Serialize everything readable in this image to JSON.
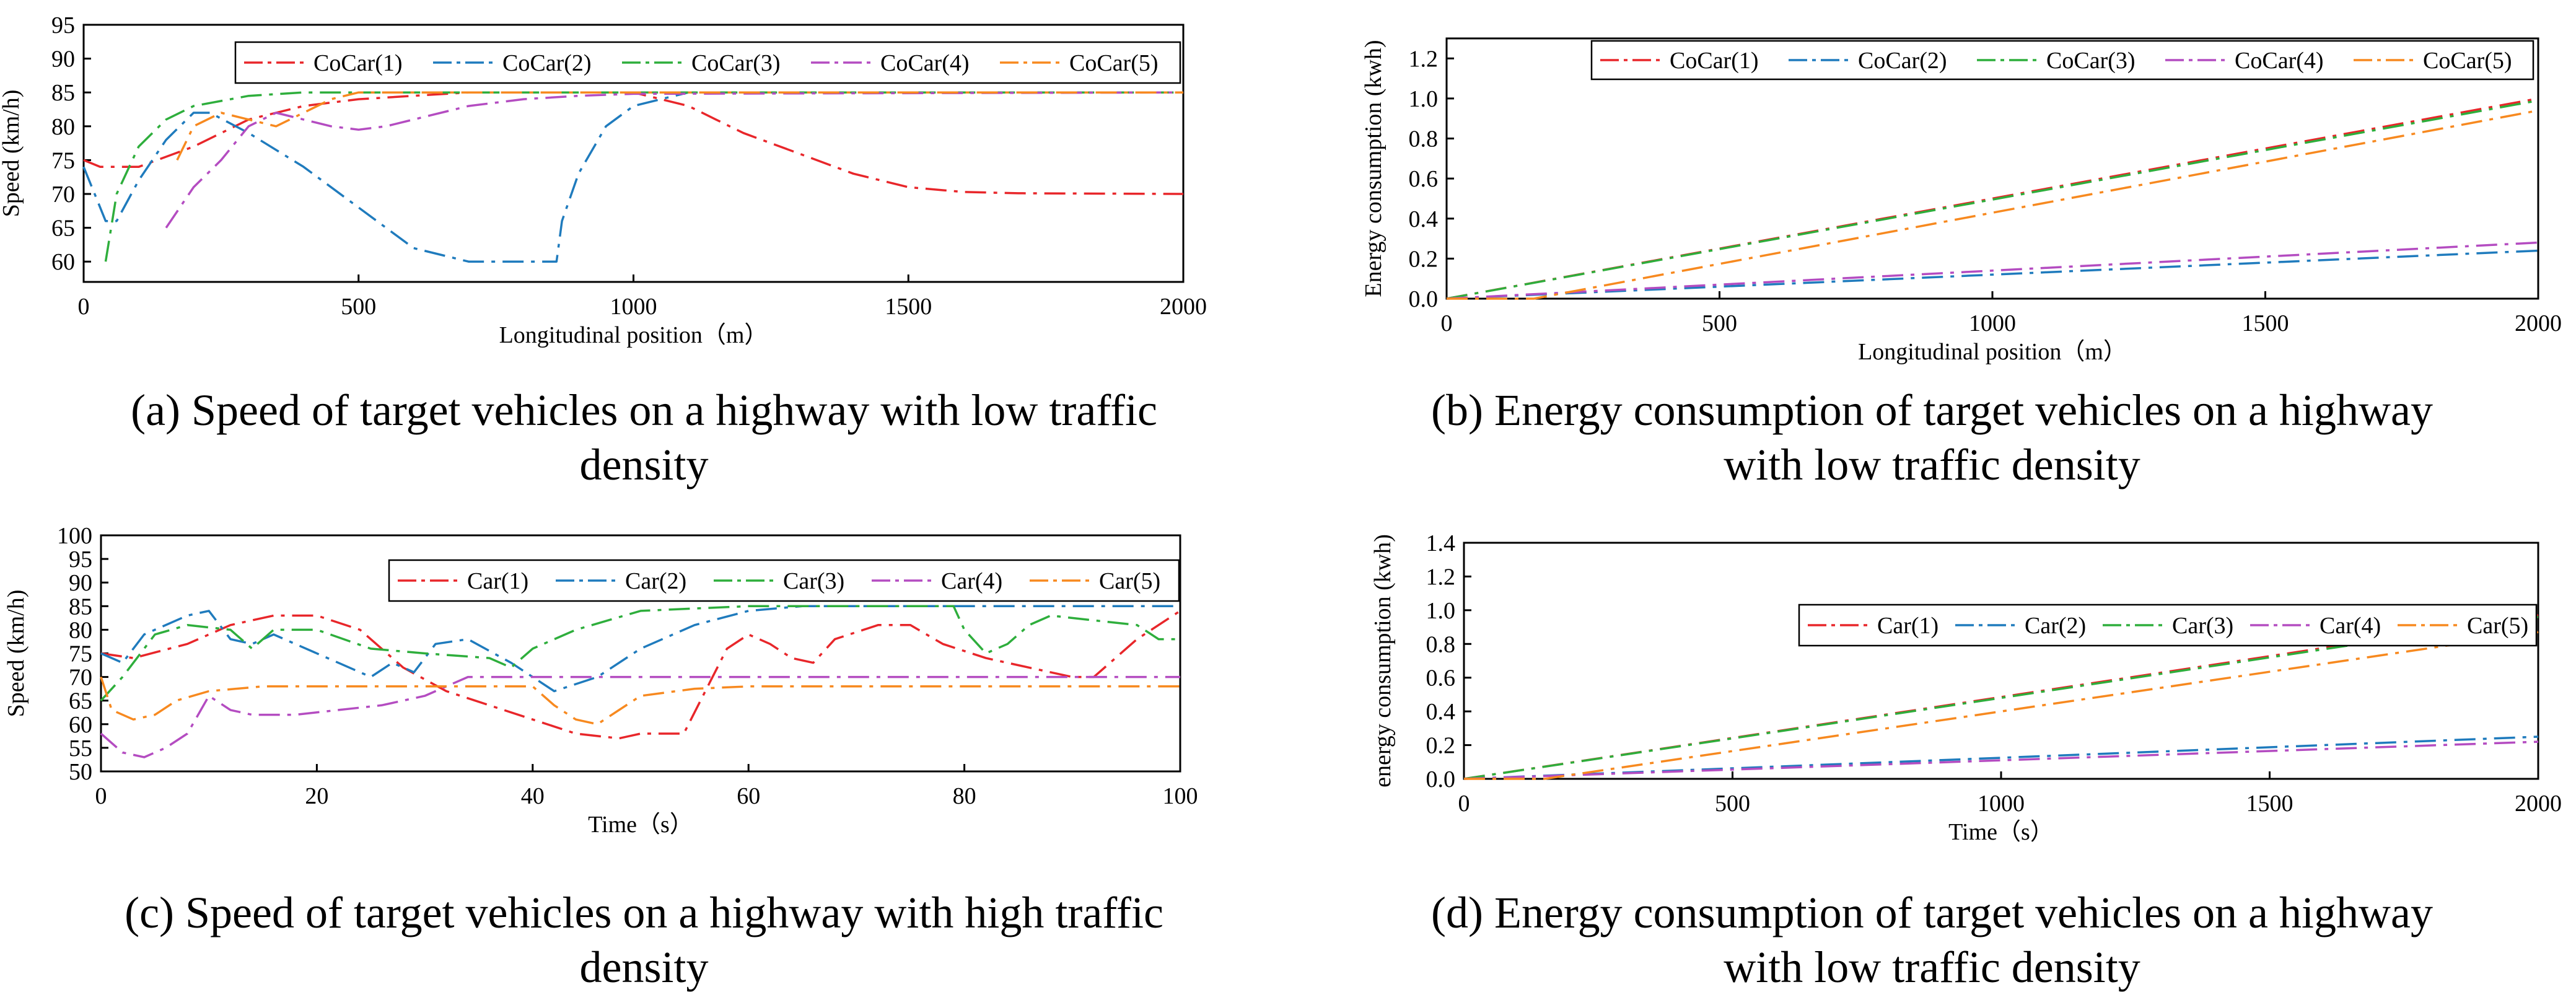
{
  "colors": {
    "series": [
      "#e8262a",
      "#1f7bbd",
      "#2eae3c",
      "#b44cc1",
      "#f7891f"
    ],
    "axis": "#000000",
    "background": "#ffffff"
  },
  "chart_data": [
    {
      "id": "a",
      "type": "line",
      "caption": "(a) Speed of target vehicles on a highway with low traffic density",
      "caption_lines": [
        "(a) Speed of target vehicles on a highway with low traffic",
        "density"
      ],
      "xlabel": "Longitudinal position（m）",
      "ylabel": "Speed (km/h)",
      "xlim": [
        0,
        2000
      ],
      "ylim": [
        57,
        95
      ],
      "xticks": [
        0,
        500,
        1000,
        1500,
        2000
      ],
      "yticks": [
        60,
        65,
        70,
        75,
        80,
        85,
        90,
        95
      ],
      "tick_decimals": 0,
      "grid": false,
      "legend_position": "top-right",
      "series": [
        {
          "name": "CoCar(1)",
          "points": [
            [
              0,
              75
            ],
            [
              30,
              74
            ],
            [
              100,
              74
            ],
            [
              200,
              77
            ],
            [
              300,
              81
            ],
            [
              400,
              83
            ],
            [
              500,
              84
            ],
            [
              700,
              85
            ],
            [
              1000,
              85
            ],
            [
              1050,
              84
            ],
            [
              1100,
              83
            ],
            [
              1150,
              81
            ],
            [
              1200,
              79
            ],
            [
              1300,
              76
            ],
            [
              1400,
              73
            ],
            [
              1500,
              71
            ],
            [
              1600,
              70.3
            ],
            [
              1700,
              70.1
            ],
            [
              2000,
              70
            ]
          ]
        },
        {
          "name": "CoCar(2)",
          "points": [
            [
              0,
              74
            ],
            [
              20,
              70
            ],
            [
              40,
              66
            ],
            [
              60,
              66
            ],
            [
              100,
              72
            ],
            [
              150,
              78
            ],
            [
              200,
              82
            ],
            [
              230,
              82
            ],
            [
              300,
              79
            ],
            [
              400,
              74
            ],
            [
              500,
              68
            ],
            [
              600,
              62
            ],
            [
              700,
              60
            ],
            [
              860,
              60
            ],
            [
              870,
              66
            ],
            [
              900,
              73
            ],
            [
              950,
              80
            ],
            [
              1000,
              83
            ],
            [
              1050,
              84
            ],
            [
              1100,
              85
            ],
            [
              2000,
              85
            ]
          ]
        },
        {
          "name": "CoCar(3)",
          "points": [
            [
              40,
              60
            ],
            [
              60,
              70
            ],
            [
              100,
              77
            ],
            [
              150,
              81
            ],
            [
              200,
              83
            ],
            [
              300,
              84.5
            ],
            [
              400,
              85
            ],
            [
              2000,
              85
            ]
          ]
        },
        {
          "name": "CoCar(4)",
          "points": [
            [
              150,
              65
            ],
            [
              200,
              71
            ],
            [
              250,
              75
            ],
            [
              300,
              80
            ],
            [
              350,
              82
            ],
            [
              400,
              81
            ],
            [
              450,
              80
            ],
            [
              500,
              79.5
            ],
            [
              550,
              80
            ],
            [
              600,
              81
            ],
            [
              700,
              83
            ],
            [
              800,
              84
            ],
            [
              900,
              84.5
            ],
            [
              1000,
              84.8
            ],
            [
              2000,
              85
            ]
          ]
        },
        {
          "name": "CoCar(5)",
          "points": [
            [
              170,
              75
            ],
            [
              200,
              80
            ],
            [
              250,
              82
            ],
            [
              300,
              81
            ],
            [
              350,
              80
            ],
            [
              400,
              82
            ],
            [
              450,
              84
            ],
            [
              500,
              85
            ],
            [
              2000,
              85
            ]
          ]
        }
      ]
    },
    {
      "id": "b",
      "type": "line",
      "caption": "(b) Energy consumption of target vehicles on a highway with low traffic density",
      "caption_lines": [
        "(b) Energy consumption of target vehicles on a highway",
        "with low traffic density"
      ],
      "xlabel": "Longitudinal position（m）",
      "ylabel": "Energy consumption (kwh)",
      "xlim": [
        0,
        2000
      ],
      "ylim": [
        0,
        1.3
      ],
      "xticks": [
        0,
        500,
        1000,
        1500,
        2000
      ],
      "yticks": [
        0.0,
        0.2,
        0.4,
        0.6,
        0.8,
        1.0,
        1.2
      ],
      "tick_decimals": 1,
      "grid": false,
      "legend_position": "top",
      "series": [
        {
          "name": "CoCar(1)",
          "points": [
            [
              0,
              0
            ],
            [
              2000,
              1.0
            ]
          ]
        },
        {
          "name": "CoCar(2)",
          "points": [
            [
              0,
              0
            ],
            [
              2000,
              0.24
            ]
          ]
        },
        {
          "name": "CoCar(3)",
          "points": [
            [
              0,
              0
            ],
            [
              2000,
              0.99
            ]
          ]
        },
        {
          "name": "CoCar(4)",
          "points": [
            [
              0,
              0
            ],
            [
              2000,
              0.28
            ]
          ]
        },
        {
          "name": "CoCar(5)",
          "points": [
            [
              0,
              0
            ],
            [
              160,
              0
            ],
            [
              2000,
              0.94
            ]
          ]
        }
      ]
    },
    {
      "id": "c",
      "type": "line",
      "caption": "(c) Speed of target vehicles on a highway with high traffic density",
      "caption_lines": [
        "(c) Speed of target vehicles on a highway with high traffic",
        "density"
      ],
      "xlabel": "Time（s）",
      "ylabel": "Speed (km/h)",
      "xlim": [
        0,
        100
      ],
      "ylim": [
        50,
        100
      ],
      "xticks": [
        0,
        20,
        40,
        60,
        80,
        100
      ],
      "yticks": [
        50,
        55,
        60,
        65,
        70,
        75,
        80,
        85,
        90,
        95,
        100
      ],
      "tick_decimals": 0,
      "grid": false,
      "legend_position": "top-right",
      "series": [
        {
          "name": "Car(1)",
          "points": [
            [
              0,
              75
            ],
            [
              3,
              74
            ],
            [
              8,
              77
            ],
            [
              12,
              81
            ],
            [
              16,
              83
            ],
            [
              20,
              83
            ],
            [
              24,
              80
            ],
            [
              28,
              72
            ],
            [
              32,
              67
            ],
            [
              36,
              64
            ],
            [
              40,
              61
            ],
            [
              44,
              58
            ],
            [
              48,
              57
            ],
            [
              50,
              58
            ],
            [
              54,
              58
            ],
            [
              56,
              67
            ],
            [
              58,
              76
            ],
            [
              60,
              79
            ],
            [
              62,
              77
            ],
            [
              64,
              74
            ],
            [
              66,
              73
            ],
            [
              68,
              78
            ],
            [
              72,
              81
            ],
            [
              75,
              81
            ],
            [
              78,
              77
            ],
            [
              82,
              74
            ],
            [
              86,
              72
            ],
            [
              90,
              70
            ],
            [
              92,
              70
            ],
            [
              96,
              78
            ],
            [
              100,
              84
            ]
          ]
        },
        {
          "name": "Car(2)",
          "points": [
            [
              0,
              75
            ],
            [
              2,
              73
            ],
            [
              4,
              79
            ],
            [
              8,
              83
            ],
            [
              10,
              84
            ],
            [
              12,
              78
            ],
            [
              14,
              77
            ],
            [
              16,
              79
            ],
            [
              18,
              77
            ],
            [
              22,
              73
            ],
            [
              25,
              70
            ],
            [
              27,
              73
            ],
            [
              29,
              71
            ],
            [
              31,
              77
            ],
            [
              34,
              78
            ],
            [
              38,
              73
            ],
            [
              42,
              67
            ],
            [
              46,
              70
            ],
            [
              50,
              76
            ],
            [
              55,
              81
            ],
            [
              60,
              84
            ],
            [
              65,
              85
            ],
            [
              100,
              85
            ]
          ]
        },
        {
          "name": "Car(3)",
          "points": [
            [
              0,
              65
            ],
            [
              2,
              70
            ],
            [
              5,
              79
            ],
            [
              8,
              81
            ],
            [
              12,
              80
            ],
            [
              14,
              76
            ],
            [
              16,
              80
            ],
            [
              20,
              80
            ],
            [
              25,
              76
            ],
            [
              30,
              75
            ],
            [
              36,
              74
            ],
            [
              38,
              72
            ],
            [
              40,
              76
            ],
            [
              44,
              80
            ],
            [
              50,
              84
            ],
            [
              60,
              85
            ],
            [
              79,
              85
            ],
            [
              80,
              80
            ],
            [
              82,
              75
            ],
            [
              84,
              77
            ],
            [
              86,
              81
            ],
            [
              88,
              83
            ],
            [
              92,
              82
            ],
            [
              96,
              81
            ],
            [
              98,
              78
            ],
            [
              100,
              78
            ]
          ]
        },
        {
          "name": "Car(4)",
          "points": [
            [
              0,
              58
            ],
            [
              2,
              54
            ],
            [
              4,
              53
            ],
            [
              6,
              55
            ],
            [
              8,
              58
            ],
            [
              9,
              62
            ],
            [
              10,
              66
            ],
            [
              12,
              63
            ],
            [
              14,
              62
            ],
            [
              18,
              62
            ],
            [
              22,
              63
            ],
            [
              26,
              64
            ],
            [
              30,
              66
            ],
            [
              34,
              70
            ],
            [
              40,
              70
            ],
            [
              100,
              70
            ]
          ]
        },
        {
          "name": "Car(5)",
          "points": [
            [
              0,
              70
            ],
            [
              1,
              63
            ],
            [
              3,
              61
            ],
            [
              5,
              62
            ],
            [
              7,
              65
            ],
            [
              10,
              67
            ],
            [
              15,
              68
            ],
            [
              20,
              68
            ],
            [
              40,
              68
            ],
            [
              42,
              64
            ],
            [
              44,
              61
            ],
            [
              46,
              60
            ],
            [
              48,
              63
            ],
            [
              50,
              66
            ],
            [
              55,
              67.5
            ],
            [
              60,
              68
            ],
            [
              100,
              68
            ]
          ]
        }
      ]
    },
    {
      "id": "d",
      "type": "line",
      "caption": "(d) Energy consumption of target vehicles on a highway with low traffic density",
      "caption_lines": [
        "(d) Energy consumption of target vehicles on a highway",
        "with low traffic density"
      ],
      "xlabel": "Time（s）",
      "ylabel": "energy consumption (kwh)",
      "xlim": [
        0,
        2000
      ],
      "ylim": [
        0,
        1.4
      ],
      "xticks": [
        0,
        500,
        1000,
        1500,
        2000
      ],
      "yticks": [
        0.0,
        0.2,
        0.4,
        0.6,
        0.8,
        1.0,
        1.2,
        1.4
      ],
      "tick_decimals": 1,
      "grid": false,
      "legend_position": "top-right",
      "series": [
        {
          "name": "Car(1)",
          "points": [
            [
              0,
              0
            ],
            [
              2000,
              0.97
            ]
          ]
        },
        {
          "name": "Car(2)",
          "points": [
            [
              0,
              0
            ],
            [
              2000,
              0.25
            ]
          ]
        },
        {
          "name": "Car(3)",
          "points": [
            [
              0,
              0
            ],
            [
              2000,
              0.96
            ]
          ]
        },
        {
          "name": "Car(4)",
          "points": [
            [
              0,
              0
            ],
            [
              2000,
              0.22
            ]
          ]
        },
        {
          "name": "Car(5)",
          "points": [
            [
              0,
              0
            ],
            [
              150,
              0
            ],
            [
              2000,
              0.87
            ]
          ]
        }
      ]
    }
  ]
}
